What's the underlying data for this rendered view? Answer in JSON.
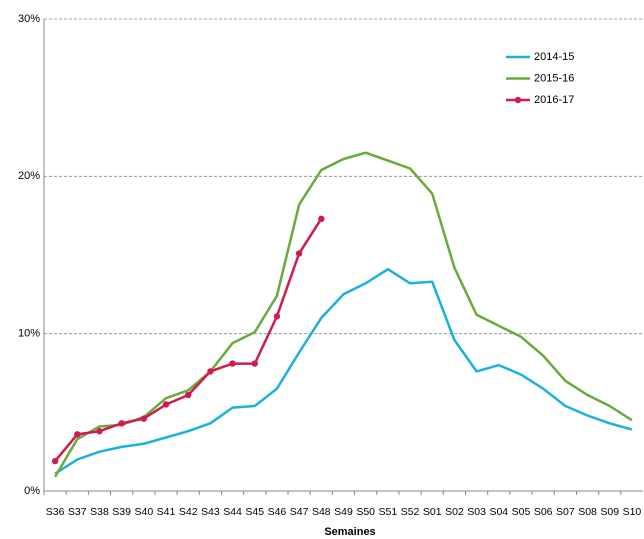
{
  "chart_data": {
    "type": "line",
    "x_label": "Semaines",
    "categories": [
      "S36",
      "S37",
      "S38",
      "S39",
      "S40",
      "S41",
      "S42",
      "S43",
      "S44",
      "S45",
      "S46",
      "S47",
      "S48",
      "S49",
      "S50",
      "S51",
      "S52",
      "S01",
      "S02",
      "S03",
      "S04",
      "S05",
      "S06",
      "S07",
      "S08",
      "S09",
      "S10"
    ],
    "series": [
      {
        "name": "2014-15",
        "color": "#1ab0e0",
        "marker": false,
        "values": [
          1.1,
          2.0,
          2.5,
          2.8,
          3.0,
          3.4,
          3.8,
          4.3,
          5.3,
          5.4,
          6.5,
          8.8,
          11.0,
          12.5,
          13.2,
          14.1,
          13.2,
          13.3,
          9.6,
          7.6,
          8.0,
          7.4,
          6.5,
          5.4,
          4.8,
          4.3,
          3.9
        ]
      },
      {
        "name": "2015-16",
        "color": "#6aaa3a",
        "marker": false,
        "values": [
          0.9,
          3.3,
          4.1,
          4.2,
          4.7,
          5.9,
          6.4,
          7.6,
          9.4,
          10.1,
          12.4,
          18.2,
          20.4,
          21.1,
          21.5,
          21.0,
          20.5,
          18.9,
          14.2,
          11.2,
          10.5,
          9.8,
          8.6,
          7.0,
          6.1,
          5.4,
          4.5
        ]
      },
      {
        "name": "2016-17",
        "color": "#d01a50",
        "marker": true,
        "values": [
          1.9,
          3.6,
          3.8,
          4.3,
          4.6,
          5.5,
          6.1,
          7.6,
          8.1,
          8.1,
          11.1,
          15.1,
          17.3,
          null,
          null,
          null,
          null,
          null,
          null,
          null,
          null,
          null,
          null,
          null,
          null,
          null,
          null
        ]
      }
    ],
    "ylim": [
      0,
      30
    ],
    "yticks": [
      {
        "value": 0,
        "label": "0%"
      },
      {
        "value": 10,
        "label": "10%"
      },
      {
        "value": 20,
        "label": "20%"
      },
      {
        "value": 30,
        "label": "30%"
      }
    ],
    "grid": true,
    "legend": "upper right"
  }
}
